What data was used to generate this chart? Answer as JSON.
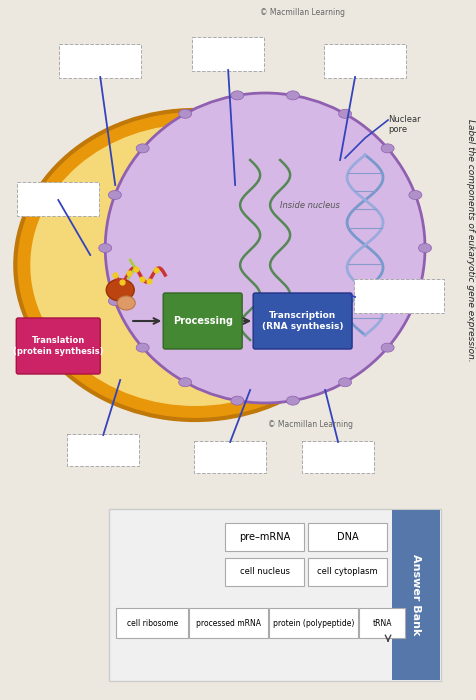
{
  "bg_color": "#ece8e0",
  "title": "Label the components of eukaryotic gene expression.",
  "copyright_top": "© Macmillan Learning",
  "copyright_bottom": "© Macmillan Learning",
  "cell_outer_fc": "#e8960a",
  "cell_outer_ec": "#c07808",
  "cell_inner_fc": "#f5d878",
  "nucleus_fc": "#d5b8e5",
  "nucleus_ec": "#9060b0",
  "transcription_fc": "#3355aa",
  "transcription_ec": "#223388",
  "processing_fc": "#448833",
  "processing_ec": "#336622",
  "translation_fc": "#cc2266",
  "translation_ec": "#aa1144",
  "arrow_color": "#333333",
  "pointer_color": "#3344bb",
  "label_box_ec": "#aaaaaa",
  "answer_bank_header_fc": "#5577aa",
  "answer_bank_bg": "#f8f8f8",
  "dna_color1": "#7799cc",
  "dna_color2": "#99aadd",
  "mrna_color": "#558855",
  "nuclear_pore_fc": "#b090c8",
  "nuclear_pore_ec": "#9060b0",
  "ribosome_large_fc": "#cc5522",
  "ribosome_small_fc": "#ddaa88",
  "protein_color": "#cc3333",
  "amino_color": "#eecc22",
  "trna_color": "#aacc44",
  "items": {
    "DNA": "DNA",
    "pre_mrna": "pre–mRNA",
    "cell_cytoplasm": "cell cytoplasm",
    "cell_nucleus": "cell nucleus",
    "cell_ribosome": "cell ribosome",
    "processed_mrna": "processed mRNA",
    "protein": "protein (polypeptide)",
    "trna": "tRNA"
  }
}
